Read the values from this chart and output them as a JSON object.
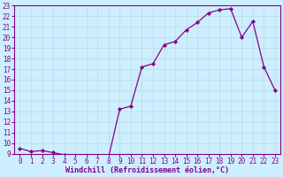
{
  "x": [
    0,
    1,
    2,
    3,
    4,
    5,
    6,
    7,
    8,
    9,
    10,
    11,
    12,
    13,
    14,
    15,
    16,
    17,
    18,
    19,
    20,
    21,
    22,
    23
  ],
  "y": [
    9.5,
    9.2,
    9.3,
    9.1,
    8.9,
    8.8,
    8.7,
    8.6,
    8.7,
    13.2,
    13.5,
    17.2,
    17.5,
    19.3,
    19.6,
    20.7,
    21.4,
    22.3,
    22.6,
    22.7,
    20.0,
    21.5,
    17.2,
    15.0
  ],
  "line_color": "#880088",
  "marker_color": "#880088",
  "bg_color": "#cceeff",
  "grid_color": "#b8ddd8",
  "xlabel": "Windchill (Refroidissement éolien,°C)",
  "ylim": [
    9,
    23
  ],
  "xlim": [
    -0.5,
    23.5
  ],
  "yticks": [
    9,
    10,
    11,
    12,
    13,
    14,
    15,
    16,
    17,
    18,
    19,
    20,
    21,
    22,
    23
  ],
  "xticks": [
    0,
    1,
    2,
    3,
    4,
    5,
    6,
    7,
    8,
    9,
    10,
    11,
    12,
    13,
    14,
    15,
    16,
    17,
    18,
    19,
    20,
    21,
    22,
    23
  ],
  "tick_fontsize": 5.5,
  "xlabel_fontsize": 6.0
}
